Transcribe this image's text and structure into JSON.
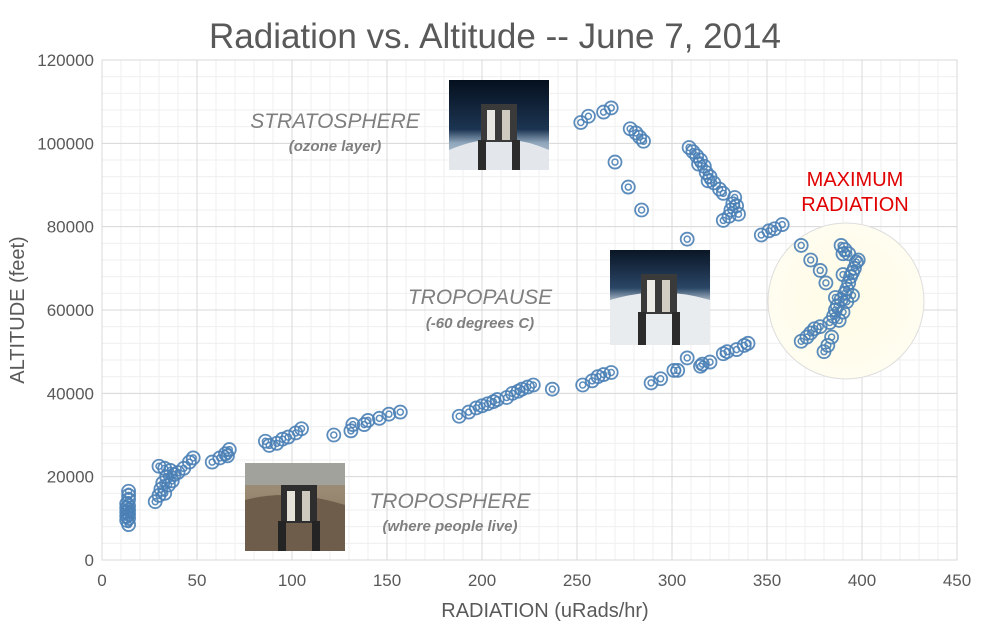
{
  "chart_data": {
    "type": "scatter",
    "title": "Radiation vs. Altitude -- June 7, 2014",
    "xlabel": "RADIATION (uRads/hr)",
    "ylabel": "ALTITUDE (feet)",
    "xlim": [
      0,
      450
    ],
    "ylim": [
      0,
      120000
    ],
    "x_ticks": [
      "0",
      "50",
      "100",
      "150",
      "200",
      "250",
      "300",
      "350",
      "400",
      "450"
    ],
    "y_ticks": [
      "0",
      "20000",
      "40000",
      "60000",
      "80000",
      "100000",
      "120000"
    ],
    "grid": true,
    "marker": "double-circle",
    "series_color": "#4a7fb5",
    "highlight_color": "#fffbe6",
    "annotations": [
      {
        "text": "STRATOSPHERE",
        "sub": "(ozone layer)"
      },
      {
        "text": "TROPOPAUSE",
        "sub": "(-60 degrees C)"
      },
      {
        "text": "TROPOSPHERE",
        "sub": "(where people live)"
      },
      {
        "text": "MAXIMUM",
        "sub": "RADIATION"
      }
    ],
    "photos": [
      "stratosphere-photo",
      "tropopause-photo",
      "troposphere-photo"
    ],
    "points": [
      [
        13,
        9500
      ],
      [
        13,
        10500
      ],
      [
        13,
        11500
      ],
      [
        13,
        12500
      ],
      [
        13,
        13500
      ],
      [
        14,
        8500
      ],
      [
        14,
        10000
      ],
      [
        14,
        11000
      ],
      [
        14,
        12000
      ],
      [
        14,
        13000
      ],
      [
        14,
        14500
      ],
      [
        14,
        15500
      ],
      [
        14,
        16500
      ],
      [
        28,
        14000
      ],
      [
        30,
        15500
      ],
      [
        31,
        17000
      ],
      [
        32,
        18500
      ],
      [
        33,
        16000
      ],
      [
        34,
        20000
      ],
      [
        35,
        18000
      ],
      [
        36,
        21500
      ],
      [
        37,
        19000
      ],
      [
        38,
        20500
      ],
      [
        30,
        22500
      ],
      [
        33,
        22000
      ],
      [
        40,
        21000
      ],
      [
        43,
        22000
      ],
      [
        46,
        23500
      ],
      [
        48,
        24500
      ],
      [
        58,
        23500
      ],
      [
        62,
        24500
      ],
      [
        65,
        25500
      ],
      [
        67,
        26500
      ],
      [
        66,
        25000
      ],
      [
        86,
        28500
      ],
      [
        88,
        27500
      ],
      [
        92,
        28000
      ],
      [
        95,
        29000
      ],
      [
        98,
        29500
      ],
      [
        102,
        30500
      ],
      [
        105,
        31500
      ],
      [
        122,
        30000
      ],
      [
        131,
        31000
      ],
      [
        132,
        32500
      ],
      [
        138,
        32500
      ],
      [
        140,
        33500
      ],
      [
        146,
        34000
      ],
      [
        151,
        35000
      ],
      [
        157,
        35500
      ],
      [
        188,
        34500
      ],
      [
        193,
        35500
      ],
      [
        197,
        36500
      ],
      [
        200,
        37000
      ],
      [
        203,
        37500
      ],
      [
        206,
        38000
      ],
      [
        208,
        38500
      ],
      [
        213,
        39000
      ],
      [
        216,
        40000
      ],
      [
        219,
        40500
      ],
      [
        221,
        41000
      ],
      [
        224,
        41500
      ],
      [
        227,
        42000
      ],
      [
        237,
        41000
      ],
      [
        253,
        42000
      ],
      [
        258,
        43000
      ],
      [
        261,
        44000
      ],
      [
        264,
        44500
      ],
      [
        268,
        45000
      ],
      [
        289,
        42500
      ],
      [
        294,
        43500
      ],
      [
        301,
        45500
      ],
      [
        303,
        45500
      ],
      [
        308,
        48500
      ],
      [
        315,
        46500
      ],
      [
        316,
        47000
      ],
      [
        320,
        47500
      ],
      [
        327,
        49500
      ],
      [
        329,
        50000
      ],
      [
        334,
        50500
      ],
      [
        338,
        51500
      ],
      [
        340,
        52000
      ],
      [
        368,
        52500
      ],
      [
        371,
        53500
      ],
      [
        373,
        54500
      ],
      [
        375,
        55500
      ],
      [
        378,
        56000
      ],
      [
        380,
        50000
      ],
      [
        382,
        51500
      ],
      [
        383,
        57000
      ],
      [
        384,
        53500
      ],
      [
        385,
        58500
      ],
      [
        386,
        60000
      ],
      [
        387,
        61000
      ],
      [
        388,
        57500
      ],
      [
        389,
        62500
      ],
      [
        390,
        59500
      ],
      [
        391,
        64000
      ],
      [
        392,
        65000
      ],
      [
        393,
        66500
      ],
      [
        394,
        68000
      ],
      [
        395,
        69000
      ],
      [
        396,
        70000
      ],
      [
        397,
        71500
      ],
      [
        398,
        72000
      ],
      [
        390,
        73500
      ],
      [
        389,
        75500
      ],
      [
        391,
        74500
      ],
      [
        393,
        73500
      ],
      [
        378,
        69500
      ],
      [
        373,
        72000
      ],
      [
        368,
        75500
      ],
      [
        381,
        66500
      ],
      [
        386,
        63000
      ],
      [
        390,
        68500
      ],
      [
        392,
        62000
      ],
      [
        395,
        63500
      ],
      [
        347,
        78000
      ],
      [
        351,
        79000
      ],
      [
        354,
        79500
      ],
      [
        358,
        80500
      ],
      [
        308,
        77000
      ],
      [
        327,
        81500
      ],
      [
        330,
        82500
      ],
      [
        331,
        84000
      ],
      [
        332,
        85500
      ],
      [
        333,
        87000
      ],
      [
        334,
        85000
      ],
      [
        335,
        83000
      ],
      [
        327,
        88000
      ],
      [
        325,
        89000
      ],
      [
        322,
        90500
      ],
      [
        320,
        92000
      ],
      [
        318,
        93000
      ],
      [
        317,
        94500
      ],
      [
        315,
        96000
      ],
      [
        313,
        97000
      ],
      [
        311,
        98000
      ],
      [
        309,
        99000
      ],
      [
        314,
        95000
      ],
      [
        319,
        91000
      ],
      [
        270,
        95500
      ],
      [
        277,
        89500
      ],
      [
        284,
        84000
      ],
      [
        278,
        103500
      ],
      [
        281,
        102500
      ],
      [
        283,
        101500
      ],
      [
        285,
        100500
      ],
      [
        252,
        105000
      ],
      [
        256,
        106500
      ],
      [
        264,
        107500
      ],
      [
        268,
        108500
      ]
    ]
  }
}
